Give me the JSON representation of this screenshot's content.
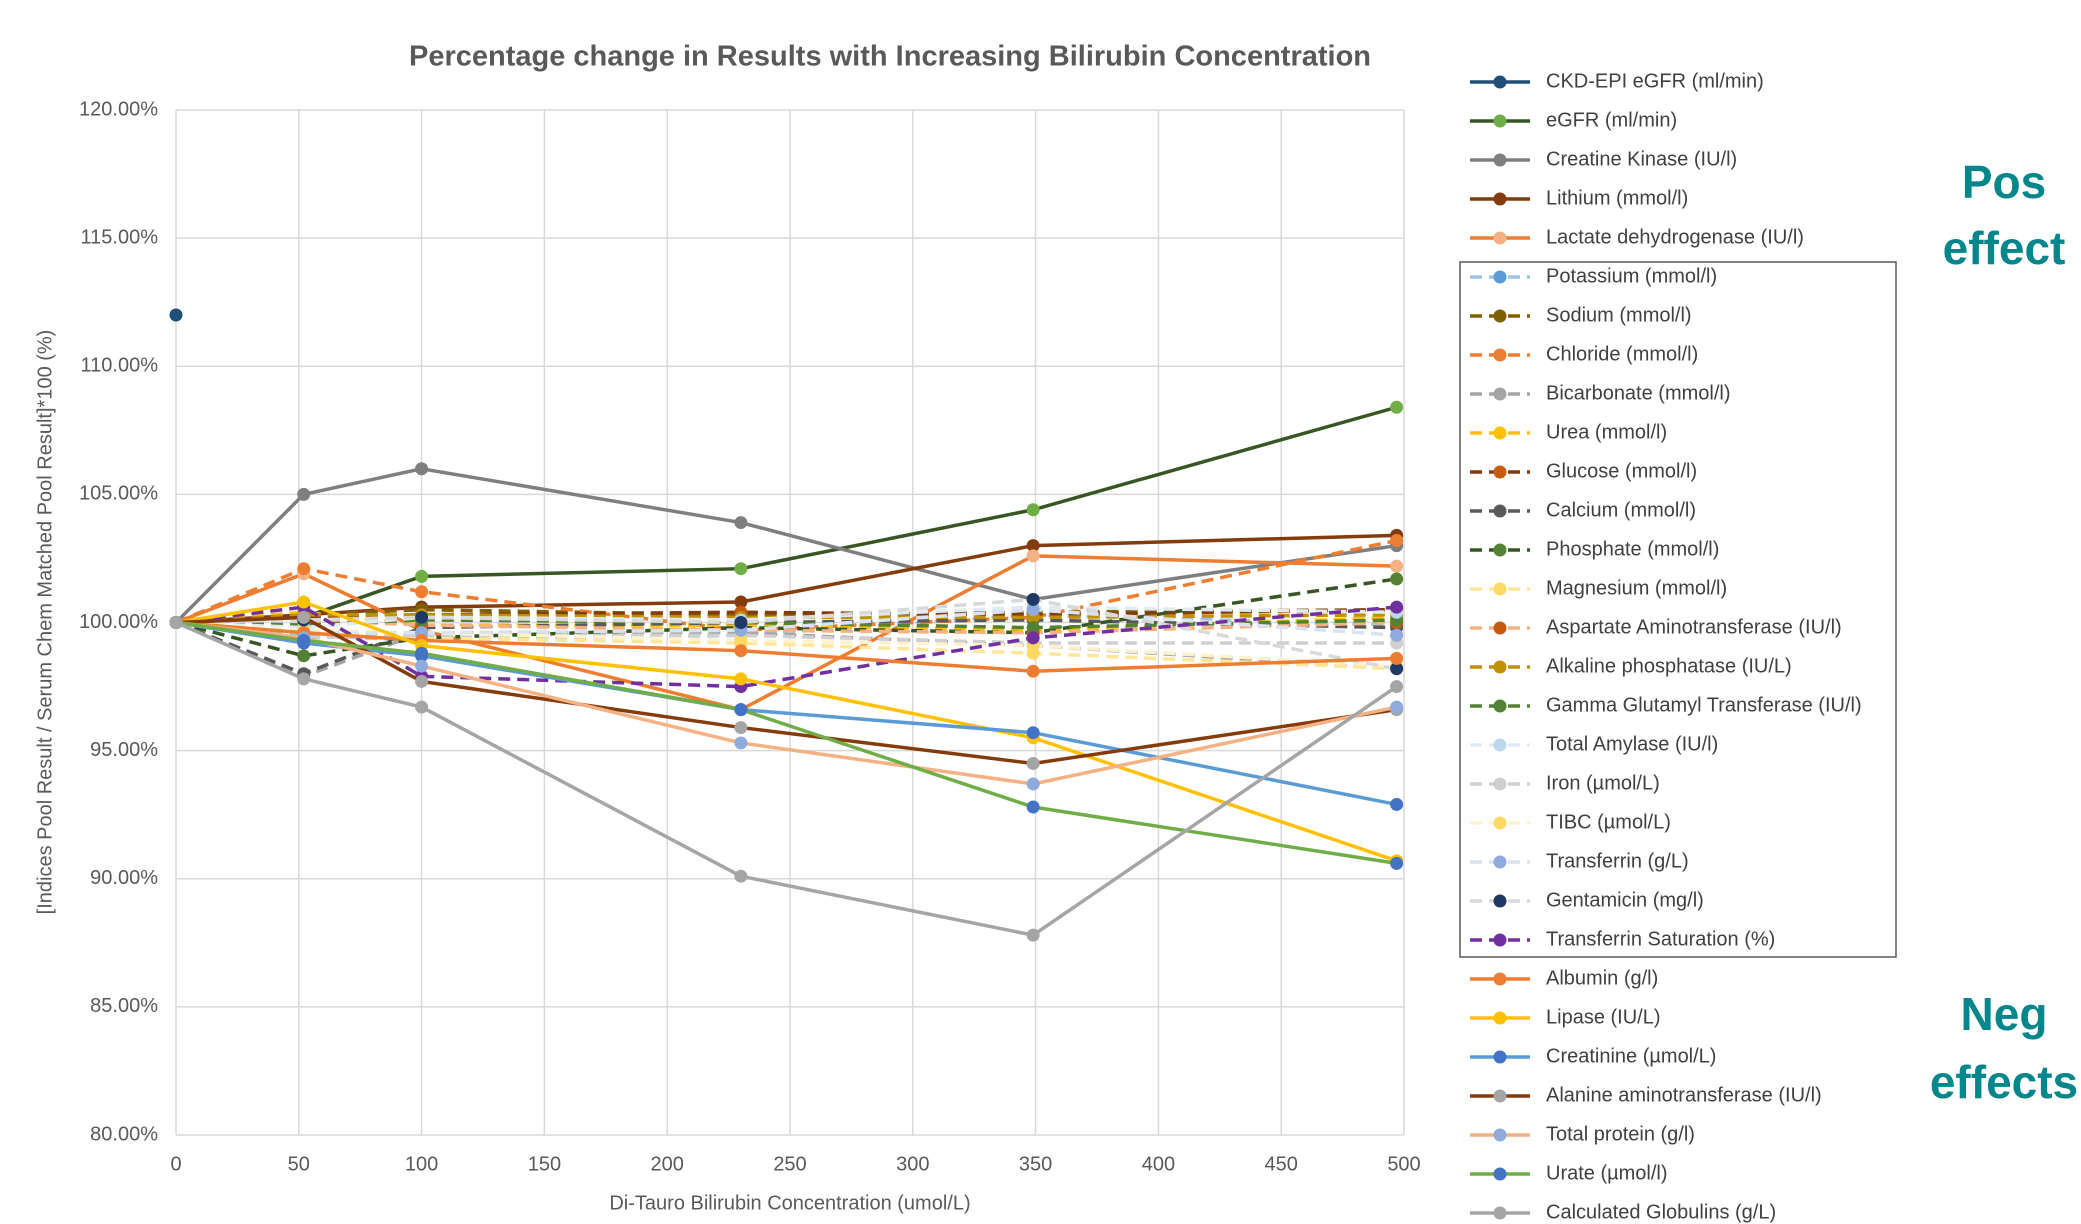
{
  "chart_data": {
    "type": "line",
    "title": "Percentage change in Results with Increasing Bilirubin Concentration",
    "x_label": "Di-Tauro Bilirubin Concentration (umol/L)",
    "y_label": "[Indices Pool Result / Serum Chem Matched Pool Result]*100 (%)",
    "x": [
      0,
      52,
      100,
      230,
      349,
      497
    ],
    "xlim": [
      0,
      500
    ],
    "xticks": [
      0,
      50,
      100,
      150,
      200,
      250,
      300,
      350,
      400,
      450,
      500
    ],
    "ylim": [
      80,
      120
    ],
    "yticks": [
      {
        "value": 80,
        "label": "80.00%"
      },
      {
        "value": 85,
        "label": "85.00%"
      },
      {
        "value": 90,
        "label": "90.00%"
      },
      {
        "value": 95,
        "label": "95.00%"
      },
      {
        "value": 100,
        "label": "100.00%"
      },
      {
        "value": 105,
        "label": "105.00%"
      },
      {
        "value": 110,
        "label": "110.00%"
      },
      {
        "value": 115,
        "label": "115.00%"
      },
      {
        "value": 120,
        "label": "120.00%"
      }
    ],
    "grid": true,
    "annotations": [
      "Pos",
      "effect",
      "Neg",
      "effects"
    ],
    "series": [
      {
        "name": "CKD-EPI eGFR (ml/min)",
        "color": "#1f4e79",
        "marker_color": "#1f4e79",
        "dashed": false,
        "values": [
          112,
          null,
          null,
          null,
          null,
          null
        ]
      },
      {
        "name": "eGFR (ml/min)",
        "color": "#375623",
        "marker_color": "#70ad47",
        "dashed": false,
        "values": [
          100,
          100.2,
          101.8,
          102.1,
          104.4,
          108.4
        ]
      },
      {
        "name": "Creatine Kinase (IU/l)",
        "color": "#7f7f7f",
        "marker_color": "#7f7f7f",
        "dashed": false,
        "values": [
          100,
          105,
          106,
          103.9,
          100.9,
          103
        ]
      },
      {
        "name": "Lithium (mmol/l)",
        "color": "#843c0c",
        "marker_color": "#843c0c",
        "dashed": false,
        "values": [
          100,
          100.3,
          100.6,
          100.8,
          103,
          103.4
        ]
      },
      {
        "name": "Lactate dehydrogenase (IU/l)",
        "color": "#ed7d31",
        "marker_color": "#f4b183",
        "dashed": false,
        "values": [
          100,
          101.9,
          99.7,
          96.6,
          102.6,
          102.2
        ]
      },
      {
        "name": "Potassium (mmol/l)",
        "color": "#9dc3e6",
        "marker_color": "#5b9bd5",
        "dashed": true,
        "values": [
          100,
          99.5,
          99.3,
          99.5,
          100.3,
          99.9
        ]
      },
      {
        "name": "Sodium (mmol/l)",
        "color": "#7f6000",
        "marker_color": "#7f6000",
        "dashed": true,
        "values": [
          100,
          100.3,
          100.5,
          100.3,
          100.4,
          100.5
        ]
      },
      {
        "name": "Chloride (mmol/l)",
        "color": "#ed7d31",
        "marker_color": "#ed7d31",
        "dashed": true,
        "values": [
          100,
          102.1,
          101.2,
          99.7,
          100.2,
          103.2
        ]
      },
      {
        "name": "Bicarbonate (mmol/l)",
        "color": "#a5a5a5",
        "marker_color": "#a5a5a5",
        "dashed": true,
        "values": [
          100,
          97.9,
          99.6,
          99.6,
          99.1,
          98.2
        ]
      },
      {
        "name": "Urea (mmol/l)",
        "color": "#ffc000",
        "marker_color": "#ffc000",
        "dashed": true,
        "values": [
          100,
          100.4,
          99.9,
          99.9,
          99.7,
          100.2
        ]
      },
      {
        "name": "Glucose (mmol/l)",
        "color": "#843c0c",
        "marker_color": "#c55a11",
        "dashed": true,
        "values": [
          100,
          100.2,
          100.3,
          100.4,
          100.3,
          100.5
        ]
      },
      {
        "name": "Calcium (mmol/l)",
        "color": "#595959",
        "marker_color": "#595959",
        "dashed": true,
        "values": [
          100,
          98,
          99.8,
          100,
          100.1,
          99.8
        ]
      },
      {
        "name": "Phosphate (mmol/l)",
        "color": "#375623",
        "marker_color": "#548235",
        "dashed": true,
        "values": [
          100,
          98.7,
          99.4,
          99.8,
          99.6,
          101.7
        ]
      },
      {
        "name": "Magnesium (mmol/l)",
        "color": "#ffe699",
        "marker_color": "#ffd966",
        "dashed": true,
        "values": [
          100,
          99.6,
          99.4,
          99.2,
          98.8,
          98.2
        ]
      },
      {
        "name": "Aspartate Aminotransferase (IU/l)",
        "color": "#f4b183",
        "marker_color": "#c55a11",
        "dashed": true,
        "values": [
          100,
          100.1,
          99.9,
          99.7,
          99.6,
          100
        ]
      },
      {
        "name": "Alkaline phosphatase (IU/L)",
        "color": "#bf9000",
        "marker_color": "#bf9000",
        "dashed": true,
        "values": [
          100,
          100.3,
          100.3,
          100.2,
          100.2,
          100.3
        ]
      },
      {
        "name": "Gamma Glutamyl Transferase (IU/l)",
        "color": "#548235",
        "marker_color": "#548235",
        "dashed": true,
        "values": [
          100,
          99.9,
          100.1,
          100,
          99.8,
          100.1
        ]
      },
      {
        "name": "Total Amylase (IU/l)",
        "color": "#deebf7",
        "marker_color": "#bdd7ee",
        "dashed": true,
        "values": [
          100,
          99.8,
          100.2,
          100.1,
          100.6,
          100.4
        ]
      },
      {
        "name": "Iron (µmol/L)",
        "color": "#d0cece",
        "marker_color": "#d0cece",
        "dashed": true,
        "values": [
          100,
          99.4,
          99.5,
          99.5,
          99.2,
          99.2
        ]
      },
      {
        "name": "TIBC (µmol/L)",
        "color": "#fff2cc",
        "marker_color": "#ffd966",
        "dashed": true,
        "values": [
          100,
          99.7,
          99.6,
          99.3,
          99.1,
          98.3
        ]
      },
      {
        "name": "Transferrin (g/L)",
        "color": "#dae3f3",
        "marker_color": "#8faadc",
        "dashed": true,
        "values": [
          100,
          99.6,
          99.6,
          99.7,
          100.5,
          99.5
        ]
      },
      {
        "name": "Gentamicin (mg/l)",
        "color": "#d9d9d9",
        "marker_color": "#1f3864",
        "dashed": true,
        "values": [
          100,
          100.1,
          100.2,
          100,
          100.9,
          98.2
        ]
      },
      {
        "name": "Transferrin Saturation (%)",
        "color": "#7030a0",
        "marker_color": "#7030a0",
        "dashed": true,
        "values": [
          100,
          100.6,
          97.9,
          97.5,
          99.4,
          100.6
        ]
      },
      {
        "name": "Albumin (g/l)",
        "color": "#ed7d31",
        "marker_color": "#ed7d31",
        "dashed": false,
        "values": [
          100,
          99.6,
          99.3,
          98.9,
          98.1,
          98.6
        ]
      },
      {
        "name": "Lipase (IU/L)",
        "color": "#ffc000",
        "marker_color": "#ffc000",
        "dashed": false,
        "values": [
          100,
          100.8,
          99.1,
          97.8,
          95.5,
          90.7
        ]
      },
      {
        "name": "Creatinine (µmol/L)",
        "color": "#5b9bd5",
        "marker_color": "#4472c4",
        "dashed": false,
        "values": [
          100,
          99.2,
          98.7,
          96.6,
          95.7,
          92.9
        ]
      },
      {
        "name": "Alanine aminotransferase (IU/l)",
        "color": "#843c0c",
        "marker_color": "#a5a5a5",
        "dashed": false,
        "values": [
          100,
          100.2,
          97.7,
          95.9,
          94.5,
          96.6
        ]
      },
      {
        "name": "Total protein (g/l)",
        "color": "#f4b183",
        "marker_color": "#8faadc",
        "dashed": false,
        "values": [
          100,
          99.4,
          98.3,
          95.3,
          93.7,
          96.7
        ]
      },
      {
        "name": "Urate (µmol/l)",
        "color": "#70ad47",
        "marker_color": "#4472c4",
        "dashed": false,
        "values": [
          100,
          99.3,
          98.8,
          96.6,
          92.8,
          90.6
        ]
      },
      {
        "name": "Calculated Globulins (g/L)",
        "color": "#a5a5a5",
        "marker_color": "#a5a5a5",
        "dashed": false,
        "values": [
          100,
          97.8,
          96.7,
          90.1,
          87.8,
          97.5
        ]
      }
    ]
  }
}
